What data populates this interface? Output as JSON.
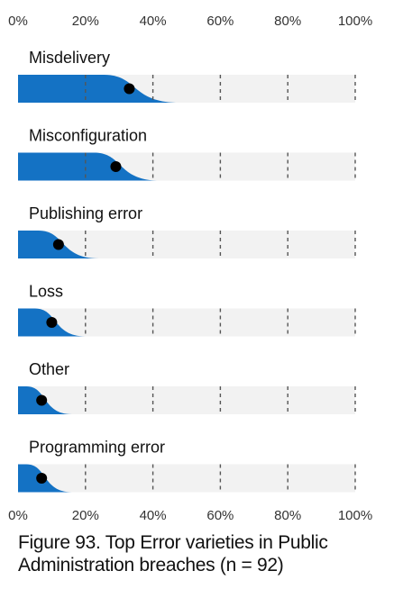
{
  "caption": "Figure 93. Top Error varieties in Public Administration breaches (n = 92)",
  "colors": {
    "distribution": "#1472c4",
    "track": "#f2f2f2",
    "point": "#000000",
    "gridline": "#555555"
  },
  "chart_data": {
    "type": "dot-interval",
    "xlim": [
      0,
      100
    ],
    "x_ticks": [
      "0%",
      "20%",
      "40%",
      "60%",
      "80%",
      "100%"
    ],
    "x_tick_values": [
      0,
      20,
      40,
      60,
      80,
      100
    ],
    "x_axis_positions": [
      "top",
      "bottom"
    ],
    "grid": "dashed vertical lines",
    "categories": [
      "Misdelivery",
      "Misconfiguration",
      "Publishing error",
      "Loss",
      "Other",
      "Programming error"
    ],
    "values": [
      33,
      29,
      12,
      10,
      7,
      7
    ],
    "interval_upper": [
      48,
      42,
      24,
      20,
      16,
      16
    ]
  }
}
